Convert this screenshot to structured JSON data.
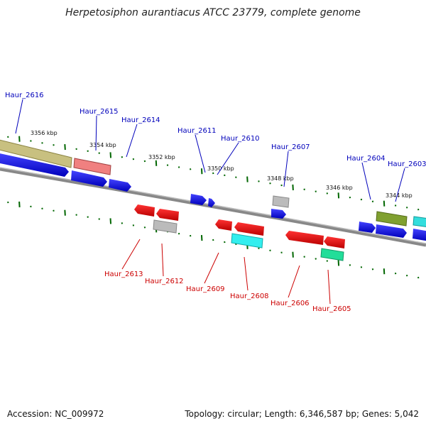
{
  "title": "Herpetosiphon aurantiacus ATCC 23779, complete genome",
  "footer": {
    "accession": "Accession: NC_009972",
    "topology": "Topology: circular; Length: 6,346,587 bp; Genes: 5,042"
  },
  "ticks": [
    {
      "label": "3356 kbp"
    },
    {
      "label": "3354 kbp"
    },
    {
      "label": "3352 kbp"
    },
    {
      "label": "3350 kbp"
    },
    {
      "label": "3348 kbp"
    },
    {
      "label": "3346 kbp"
    },
    {
      "label": "3344 kbp"
    }
  ],
  "genes_top": [
    {
      "label": "Haur_2616"
    },
    {
      "label": "Haur_2615"
    },
    {
      "label": "Haur_2614"
    },
    {
      "label": "Haur_2611"
    },
    {
      "label": "Haur_2610"
    },
    {
      "label": "Haur_2607"
    },
    {
      "label": "Haur_2604"
    },
    {
      "label": "Haur_2603"
    }
  ],
  "genes_bottom": [
    {
      "label": "Haur_2613"
    },
    {
      "label": "Haur_2612"
    },
    {
      "label": "Haur_2609"
    },
    {
      "label": "Haur_2608"
    },
    {
      "label": "Haur_2606"
    },
    {
      "label": "Haur_2605"
    }
  ],
  "colors": {
    "forward_cds": "#0000ee",
    "reverse_cds": "#ee0000",
    "top_label": "#0000bb",
    "bottom_label": "#cc0000",
    "tick": "#006600",
    "backbone": "#888888"
  }
}
